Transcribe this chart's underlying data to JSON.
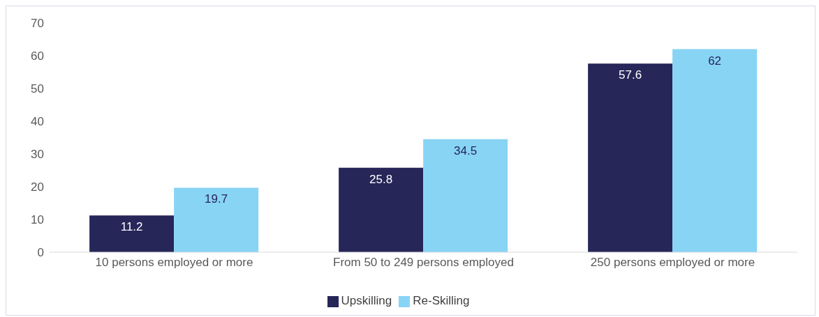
{
  "chart_data": {
    "type": "bar",
    "categories": [
      "10 persons employed or more",
      "From 50 to 249 persons employed",
      "250 persons employed or more"
    ],
    "series": [
      {
        "name": "Upskilling",
        "color": "#262659",
        "values": [
          11.2,
          25.8,
          57.6
        ]
      },
      {
        "name": "Re-Skilling",
        "color": "#88d4f5",
        "values": [
          19.7,
          34.5,
          62
        ]
      }
    ],
    "ylim": [
      0,
      70
    ],
    "yticks": [
      0,
      10,
      20,
      30,
      40,
      50,
      60,
      70
    ],
    "grid": false,
    "legend": "bottom",
    "data_labels": true
  }
}
